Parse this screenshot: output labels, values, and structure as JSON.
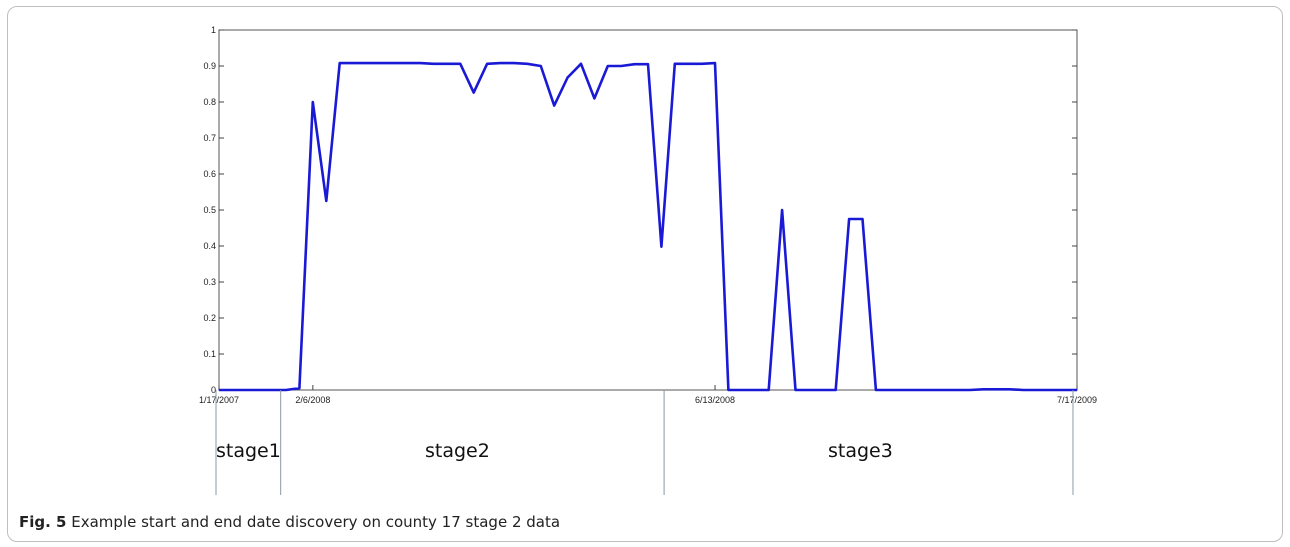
{
  "figure": {
    "caption_label": "Fig. 5",
    "caption_text": "Example start and end date discovery on county 17 stage 2 data"
  },
  "chart_data": {
    "type": "line",
    "ylim": [
      0,
      1
    ],
    "y_ticks": [
      0,
      0.1,
      0.2,
      0.3,
      0.4,
      0.5,
      0.6,
      0.7,
      0.8,
      0.9,
      1
    ],
    "y_tick_labels": [
      "0",
      "0.1",
      "0.2",
      "0.3",
      "0.4",
      "0.5",
      "0.6",
      "0.7",
      "0.8",
      "0.9",
      "1"
    ],
    "x_tick_labels": [
      {
        "label": "1/17/2007",
        "index": 0
      },
      {
        "label": "2/6/2008",
        "index": 7
      },
      {
        "label": "6/13/2008",
        "index": 37
      },
      {
        "label": "7/17/2009",
        "index": 64
      }
    ],
    "series": [
      {
        "color": "#1a1ad6",
        "values": [
          0,
          0,
          0,
          0,
          0,
          0,
          0.005,
          0.8,
          0.525,
          0.908,
          0.908,
          0.908,
          0.908,
          0.908,
          0.908,
          0.908,
          0.906,
          0.906,
          0.906,
          0.826,
          0.906,
          0.908,
          0.908,
          0.906,
          0.9,
          0.79,
          0.868,
          0.906,
          0.81,
          0.9,
          0.9,
          0.905,
          0.905,
          0.398,
          0.906,
          0.906,
          0.906,
          0.908,
          0,
          0,
          0,
          0,
          0.5,
          0,
          0,
          0,
          0,
          0.475,
          0.475,
          0,
          0,
          0,
          0,
          0,
          0,
          0,
          0,
          0.002,
          0.002,
          0.002,
          0,
          0,
          0,
          0,
          0
        ]
      }
    ],
    "stages": [
      {
        "label": "stage1",
        "boundary_index": 4.6
      },
      {
        "label": "stage2",
        "boundary_index": 33.2
      },
      {
        "label": "stage3",
        "boundary_index": 63.7
      }
    ],
    "grid": false
  }
}
